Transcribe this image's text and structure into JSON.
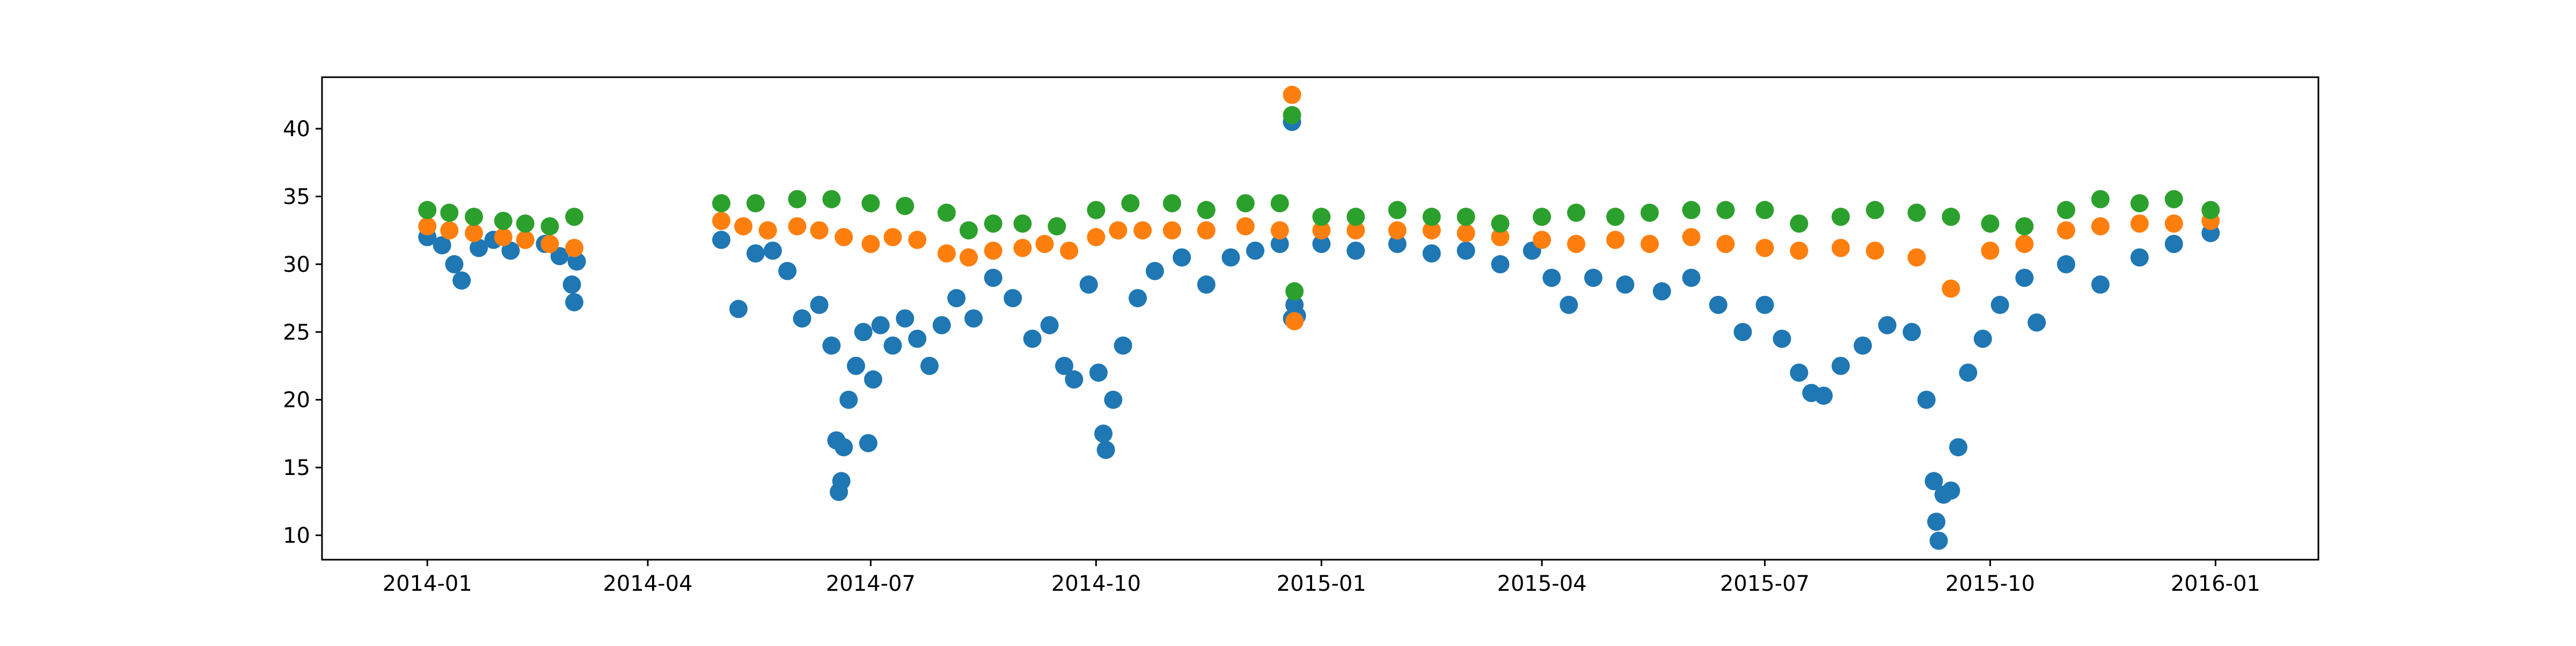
{
  "chart_data": {
    "type": "scatter",
    "title": "",
    "xlabel": "",
    "ylabel": "",
    "xlim": [
      "2013-11-19",
      "2016-02-12"
    ],
    "ylim": [
      8.2,
      43.8
    ],
    "grid": false,
    "legend": "none",
    "x_ticks": [
      "2014-01",
      "2014-04",
      "2014-07",
      "2014-10",
      "2015-01",
      "2015-04",
      "2015-07",
      "2015-10",
      "2016-01"
    ],
    "y_ticks": [
      10,
      15,
      20,
      25,
      30,
      35,
      40
    ],
    "series": [
      {
        "color": "#1f77b4",
        "points": [
          [
            "2014-01-01",
            32.0
          ],
          [
            "2014-01-07",
            31.4
          ],
          [
            "2014-01-12",
            30.0
          ],
          [
            "2014-01-15",
            28.8
          ],
          [
            "2014-01-22",
            31.2
          ],
          [
            "2014-01-28",
            31.8
          ],
          [
            "2014-02-04",
            31.0
          ],
          [
            "2014-02-10",
            31.8
          ],
          [
            "2014-02-18",
            31.5
          ],
          [
            "2014-02-24",
            30.6
          ],
          [
            "2014-03-01",
            28.5
          ],
          [
            "2014-03-02",
            27.2
          ],
          [
            "2014-03-03",
            30.2
          ],
          [
            "2014-05-01",
            31.8
          ],
          [
            "2014-05-08",
            26.7
          ],
          [
            "2014-05-15",
            30.8
          ],
          [
            "2014-05-22",
            31.0
          ],
          [
            "2014-05-28",
            29.5
          ],
          [
            "2014-06-03",
            26.0
          ],
          [
            "2014-06-10",
            27.0
          ],
          [
            "2014-06-15",
            24.0
          ],
          [
            "2014-06-17",
            17.0
          ],
          [
            "2014-06-18",
            13.2
          ],
          [
            "2014-06-19",
            14.0
          ],
          [
            "2014-06-20",
            16.5
          ],
          [
            "2014-06-22",
            20.0
          ],
          [
            "2014-06-25",
            22.5
          ],
          [
            "2014-06-28",
            25.0
          ],
          [
            "2014-06-30",
            16.8
          ],
          [
            "2014-07-02",
            21.5
          ],
          [
            "2014-07-05",
            25.5
          ],
          [
            "2014-07-10",
            24.0
          ],
          [
            "2014-07-15",
            26.0
          ],
          [
            "2014-07-20",
            24.5
          ],
          [
            "2014-07-25",
            22.5
          ],
          [
            "2014-07-30",
            25.5
          ],
          [
            "2014-08-05",
            27.5
          ],
          [
            "2014-08-12",
            26.0
          ],
          [
            "2014-08-20",
            29.0
          ],
          [
            "2014-08-28",
            27.5
          ],
          [
            "2014-09-05",
            24.5
          ],
          [
            "2014-09-12",
            25.5
          ],
          [
            "2014-09-18",
            22.5
          ],
          [
            "2014-09-22",
            21.5
          ],
          [
            "2014-09-28",
            28.5
          ],
          [
            "2014-10-02",
            22.0
          ],
          [
            "2014-10-04",
            17.5
          ],
          [
            "2014-10-05",
            16.3
          ],
          [
            "2014-10-08",
            20.0
          ],
          [
            "2014-10-12",
            24.0
          ],
          [
            "2014-10-18",
            27.5
          ],
          [
            "2014-10-25",
            29.5
          ],
          [
            "2014-11-05",
            30.5
          ],
          [
            "2014-11-15",
            28.5
          ],
          [
            "2014-11-25",
            30.5
          ],
          [
            "2014-12-05",
            31.0
          ],
          [
            "2014-12-15",
            31.5
          ],
          [
            "2014-12-20",
            40.5
          ],
          [
            "2014-12-20",
            26.0
          ],
          [
            "2014-12-21",
            27.0
          ],
          [
            "2014-12-22",
            26.2
          ],
          [
            "2015-01-01",
            31.5
          ],
          [
            "2015-01-15",
            31.0
          ],
          [
            "2015-02-01",
            31.5
          ],
          [
            "2015-02-15",
            30.8
          ],
          [
            "2015-03-01",
            31.0
          ],
          [
            "2015-03-15",
            30.0
          ],
          [
            "2015-03-28",
            31.0
          ],
          [
            "2015-04-05",
            29.0
          ],
          [
            "2015-04-12",
            27.0
          ],
          [
            "2015-04-22",
            29.0
          ],
          [
            "2015-05-05",
            28.5
          ],
          [
            "2015-05-20",
            28.0
          ],
          [
            "2015-06-01",
            29.0
          ],
          [
            "2015-06-12",
            27.0
          ],
          [
            "2015-06-22",
            25.0
          ],
          [
            "2015-07-01",
            27.0
          ],
          [
            "2015-07-08",
            24.5
          ],
          [
            "2015-07-15",
            22.0
          ],
          [
            "2015-07-20",
            20.5
          ],
          [
            "2015-07-25",
            20.3
          ],
          [
            "2015-08-01",
            22.5
          ],
          [
            "2015-08-10",
            24.0
          ],
          [
            "2015-08-20",
            25.5
          ],
          [
            "2015-08-30",
            25.0
          ],
          [
            "2015-09-05",
            20.0
          ],
          [
            "2015-09-08",
            14.0
          ],
          [
            "2015-09-09",
            11.0
          ],
          [
            "2015-09-10",
            9.6
          ],
          [
            "2015-09-12",
            13.0
          ],
          [
            "2015-09-15",
            13.3
          ],
          [
            "2015-09-18",
            16.5
          ],
          [
            "2015-09-22",
            22.0
          ],
          [
            "2015-09-28",
            24.5
          ],
          [
            "2015-10-05",
            27.0
          ],
          [
            "2015-10-15",
            29.0
          ],
          [
            "2015-10-20",
            25.7
          ],
          [
            "2015-11-01",
            30.0
          ],
          [
            "2015-11-15",
            28.5
          ],
          [
            "2015-12-01",
            30.5
          ],
          [
            "2015-12-15",
            31.5
          ],
          [
            "2015-12-30",
            32.3
          ]
        ]
      },
      {
        "color": "#ff7f0e",
        "points": [
          [
            "2014-01-01",
            32.8
          ],
          [
            "2014-01-10",
            32.5
          ],
          [
            "2014-01-20",
            32.3
          ],
          [
            "2014-02-01",
            32.0
          ],
          [
            "2014-02-10",
            31.8
          ],
          [
            "2014-02-20",
            31.5
          ],
          [
            "2014-03-02",
            31.2
          ],
          [
            "2014-05-01",
            33.2
          ],
          [
            "2014-05-10",
            32.8
          ],
          [
            "2014-05-20",
            32.5
          ],
          [
            "2014-06-01",
            32.8
          ],
          [
            "2014-06-10",
            32.5
          ],
          [
            "2014-06-20",
            32.0
          ],
          [
            "2014-07-01",
            31.5
          ],
          [
            "2014-07-10",
            32.0
          ],
          [
            "2014-07-20",
            31.8
          ],
          [
            "2014-08-01",
            30.8
          ],
          [
            "2014-08-10",
            30.5
          ],
          [
            "2014-08-20",
            31.0
          ],
          [
            "2014-09-01",
            31.2
          ],
          [
            "2014-09-10",
            31.5
          ],
          [
            "2014-09-20",
            31.0
          ],
          [
            "2014-10-01",
            32.0
          ],
          [
            "2014-10-10",
            32.5
          ],
          [
            "2014-10-20",
            32.5
          ],
          [
            "2014-11-01",
            32.5
          ],
          [
            "2014-11-15",
            32.5
          ],
          [
            "2014-12-01",
            32.8
          ],
          [
            "2014-12-15",
            32.5
          ],
          [
            "2014-12-20",
            42.5
          ],
          [
            "2014-12-21",
            25.8
          ],
          [
            "2015-01-01",
            32.5
          ],
          [
            "2015-01-15",
            32.5
          ],
          [
            "2015-02-01",
            32.5
          ],
          [
            "2015-02-15",
            32.5
          ],
          [
            "2015-03-01",
            32.3
          ],
          [
            "2015-03-15",
            32.0
          ],
          [
            "2015-04-01",
            31.8
          ],
          [
            "2015-04-15",
            31.5
          ],
          [
            "2015-05-01",
            31.8
          ],
          [
            "2015-05-15",
            31.5
          ],
          [
            "2015-06-01",
            32.0
          ],
          [
            "2015-06-15",
            31.5
          ],
          [
            "2015-07-01",
            31.2
          ],
          [
            "2015-07-15",
            31.0
          ],
          [
            "2015-08-01",
            31.2
          ],
          [
            "2015-08-15",
            31.0
          ],
          [
            "2015-09-01",
            30.5
          ],
          [
            "2015-09-15",
            28.2
          ],
          [
            "2015-10-01",
            31.0
          ],
          [
            "2015-10-15",
            31.5
          ],
          [
            "2015-11-01",
            32.5
          ],
          [
            "2015-11-15",
            32.8
          ],
          [
            "2015-12-01",
            33.0
          ],
          [
            "2015-12-15",
            33.0
          ],
          [
            "2015-12-30",
            33.2
          ]
        ]
      },
      {
        "color": "#2ca02c",
        "points": [
          [
            "2014-01-01",
            34.0
          ],
          [
            "2014-01-10",
            33.8
          ],
          [
            "2014-01-20",
            33.5
          ],
          [
            "2014-02-01",
            33.2
          ],
          [
            "2014-02-10",
            33.0
          ],
          [
            "2014-02-20",
            32.8
          ],
          [
            "2014-03-02",
            33.5
          ],
          [
            "2014-05-01",
            34.5
          ],
          [
            "2014-05-15",
            34.5
          ],
          [
            "2014-06-01",
            34.8
          ],
          [
            "2014-06-15",
            34.8
          ],
          [
            "2014-07-01",
            34.5
          ],
          [
            "2014-07-15",
            34.3
          ],
          [
            "2014-08-01",
            33.8
          ],
          [
            "2014-08-10",
            32.5
          ],
          [
            "2014-08-20",
            33.0
          ],
          [
            "2014-09-01",
            33.0
          ],
          [
            "2014-09-15",
            32.8
          ],
          [
            "2014-10-01",
            34.0
          ],
          [
            "2014-10-15",
            34.5
          ],
          [
            "2014-11-01",
            34.5
          ],
          [
            "2014-11-15",
            34.0
          ],
          [
            "2014-12-01",
            34.5
          ],
          [
            "2014-12-15",
            34.5
          ],
          [
            "2014-12-20",
            41.0
          ],
          [
            "2014-12-21",
            28.0
          ],
          [
            "2015-01-01",
            33.5
          ],
          [
            "2015-01-15",
            33.5
          ],
          [
            "2015-02-01",
            34.0
          ],
          [
            "2015-02-15",
            33.5
          ],
          [
            "2015-03-01",
            33.5
          ],
          [
            "2015-03-15",
            33.0
          ],
          [
            "2015-04-01",
            33.5
          ],
          [
            "2015-04-15",
            33.8
          ],
          [
            "2015-05-01",
            33.5
          ],
          [
            "2015-05-15",
            33.8
          ],
          [
            "2015-06-01",
            34.0
          ],
          [
            "2015-06-15",
            34.0
          ],
          [
            "2015-07-01",
            34.0
          ],
          [
            "2015-07-15",
            33.0
          ],
          [
            "2015-08-01",
            33.5
          ],
          [
            "2015-08-15",
            34.0
          ],
          [
            "2015-09-01",
            33.8
          ],
          [
            "2015-09-15",
            33.5
          ],
          [
            "2015-10-01",
            33.0
          ],
          [
            "2015-10-15",
            32.8
          ],
          [
            "2015-11-01",
            34.0
          ],
          [
            "2015-11-15",
            34.8
          ],
          [
            "2015-12-01",
            34.5
          ],
          [
            "2015-12-15",
            34.8
          ],
          [
            "2015-12-30",
            34.0
          ]
        ]
      }
    ]
  }
}
